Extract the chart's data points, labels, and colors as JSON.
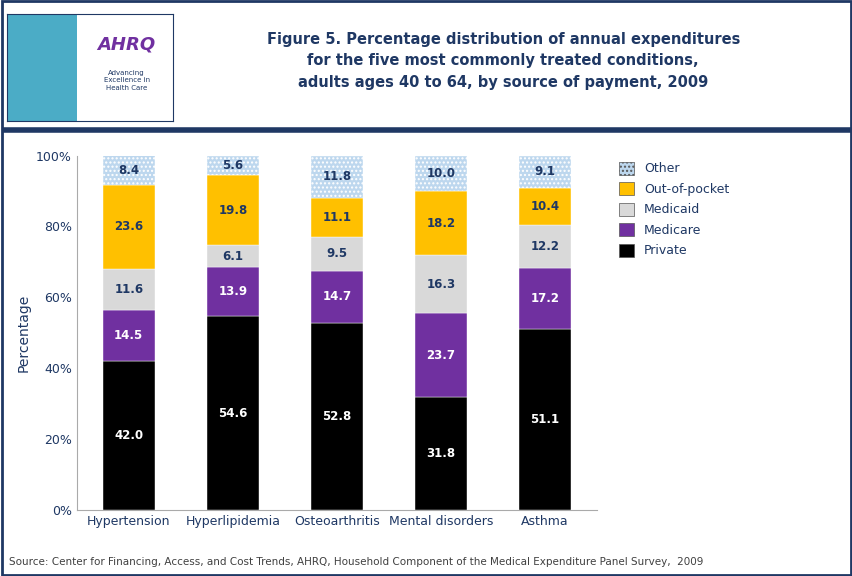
{
  "categories": [
    "Hypertension",
    "Hyperlipidemia",
    "Osteoarthritis",
    "Mental disorders",
    "Asthma"
  ],
  "series": {
    "Private": [
      42.0,
      54.6,
      52.8,
      31.8,
      51.1
    ],
    "Medicare": [
      14.5,
      13.9,
      14.7,
      23.7,
      17.2
    ],
    "Medicaid": [
      11.6,
      6.1,
      9.5,
      16.3,
      12.2
    ],
    "Out-of-pocket": [
      23.6,
      19.8,
      11.1,
      18.2,
      10.4
    ],
    "Other": [
      8.4,
      5.6,
      11.8,
      10.0,
      9.1
    ]
  },
  "colors": {
    "Private": "#000000",
    "Medicare": "#7030a0",
    "Medicaid": "#d9d9d9",
    "Out-of-pocket": "#ffc000",
    "Other": "#bdd7ee"
  },
  "other_hatch": "....",
  "title_line1": "Figure 5. Percentage distribution of annual expenditures",
  "title_line2": "for the five most commonly treated conditions,",
  "title_line3": "adults ages 40 to 64, by source of payment, 2009",
  "ylabel": "Percentage",
  "source": "Source: Center for Financing, Access, and Cost Trends, AHRQ, Household Component of the Medical Expenditure Panel Survey,  2009",
  "ylim": [
    0,
    100
  ],
  "yticks": [
    0,
    20,
    40,
    60,
    80,
    100
  ],
  "ytick_labels": [
    "0%",
    "20%",
    "40%",
    "60%",
    "80%",
    "100%"
  ],
  "legend_order": [
    "Other",
    "Out-of-pocket",
    "Medicaid",
    "Medicare",
    "Private"
  ],
  "bar_width": 0.5,
  "title_color": "#1f3864",
  "axis_label_color": "#1f3864",
  "tick_label_color": "#1f3864",
  "legend_text_color": "#1f3864",
  "border_color": "#1f3864",
  "source_color": "#404040",
  "header_line_color": "#1f3864",
  "background_color": "#ffffff",
  "plot_bg_color": "#ffffff",
  "label_colors": {
    "Private": "#ffffff",
    "Medicare": "#ffffff",
    "Medicaid": "#1f3864",
    "Out-of-pocket": "#1f3864",
    "Other": "#1f3864"
  }
}
